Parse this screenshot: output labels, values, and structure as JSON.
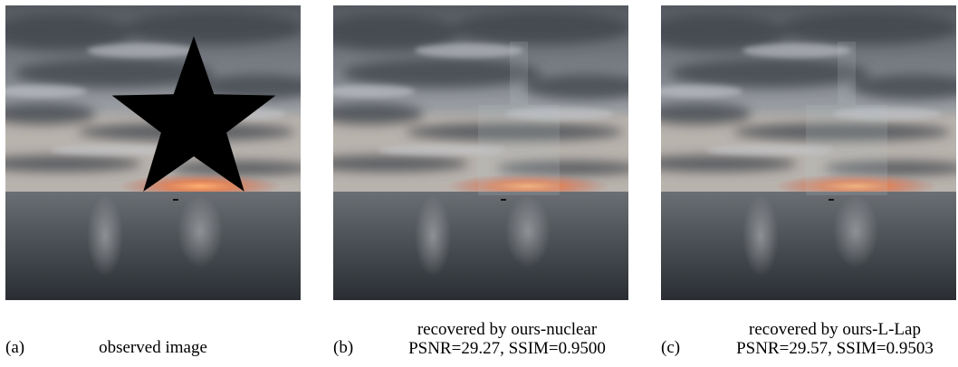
{
  "panels": [
    {
      "label": "(a)",
      "caption": [
        "observed image"
      ]
    },
    {
      "label": "(b)",
      "caption": [
        "recovered by ours-nuclear",
        "PSNR=29.27, SSIM=0.9500"
      ]
    },
    {
      "label": "(c)",
      "caption": [
        "recovered by ours-L-Lap",
        "PSNR=29.57, SSIM=0.9503"
      ]
    }
  ]
}
